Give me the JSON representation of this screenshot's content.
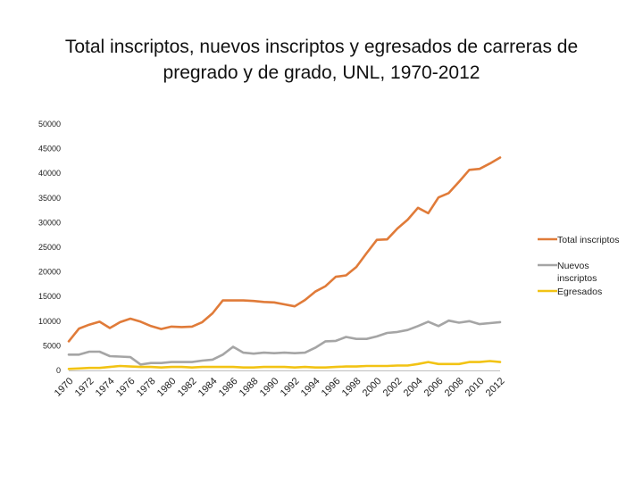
{
  "chart_data": {
    "type": "line",
    "title": "Total inscriptos, nuevos inscriptos y egresados de carreras de pregrado y de grado, UNL, 1970-2012",
    "x": [
      1970,
      1971,
      1972,
      1973,
      1974,
      1975,
      1976,
      1977,
      1978,
      1979,
      1980,
      1981,
      1982,
      1983,
      1984,
      1985,
      1986,
      1987,
      1988,
      1989,
      1990,
      1991,
      1992,
      1993,
      1994,
      1995,
      1996,
      1997,
      1998,
      1999,
      2000,
      2001,
      2002,
      2003,
      2004,
      2005,
      2006,
      2007,
      2008,
      2009,
      2010,
      2011,
      2012
    ],
    "x_tick_labels": [
      "1970",
      "1972",
      "1974",
      "1976",
      "1978",
      "1980",
      "1982",
      "1984",
      "1986",
      "1988",
      "1990",
      "1992",
      "1994",
      "1996",
      "1998",
      "2000",
      "2002",
      "2004",
      "2006",
      "2008",
      "2010",
      "2012"
    ],
    "y_ticks": [
      0,
      5000,
      10000,
      15000,
      20000,
      25000,
      30000,
      35000,
      40000,
      45000,
      50000
    ],
    "ylim": [
      0,
      50000
    ],
    "xlabel": "",
    "ylabel": "",
    "legend_position": "right",
    "series": [
      {
        "name": "Total inscriptos",
        "color": "#E07B39",
        "values": [
          5900,
          8500,
          9300,
          9900,
          8600,
          9800,
          10500,
          9900,
          9000,
          8400,
          8900,
          8800,
          8900,
          9800,
          11600,
          14200,
          14200,
          14200,
          14100,
          13900,
          13800,
          13400,
          13000,
          14300,
          16000,
          17100,
          19000,
          19300,
          21000,
          23800,
          26500,
          26600,
          28800,
          30600,
          33000,
          31900,
          35100,
          36000,
          38300,
          40700,
          40900,
          42000,
          43200
        ]
      },
      {
        "name": "Nuevos inscriptos",
        "color": "#A5A5A5",
        "values": [
          3200,
          3200,
          3800,
          3800,
          2900,
          2800,
          2700,
          1200,
          1500,
          1500,
          1700,
          1700,
          1700,
          2000,
          2200,
          3200,
          4800,
          3600,
          3400,
          3600,
          3500,
          3600,
          3500,
          3600,
          4600,
          5900,
          6000,
          6800,
          6400,
          6400,
          6900,
          7600,
          7800,
          8200,
          9000,
          9900,
          9000,
          10100,
          9700,
          10000,
          9400,
          9600,
          9800
        ]
      },
      {
        "name": "Egresados",
        "color": "#F2C314",
        "values": [
          300,
          400,
          500,
          500,
          700,
          900,
          800,
          700,
          700,
          600,
          700,
          700,
          600,
          700,
          700,
          700,
          700,
          600,
          600,
          700,
          700,
          700,
          600,
          700,
          600,
          600,
          700,
          800,
          800,
          900,
          900,
          900,
          1000,
          1000,
          1300,
          1700,
          1300,
          1300,
          1300,
          1700,
          1700,
          1900,
          1700
        ]
      }
    ]
  }
}
